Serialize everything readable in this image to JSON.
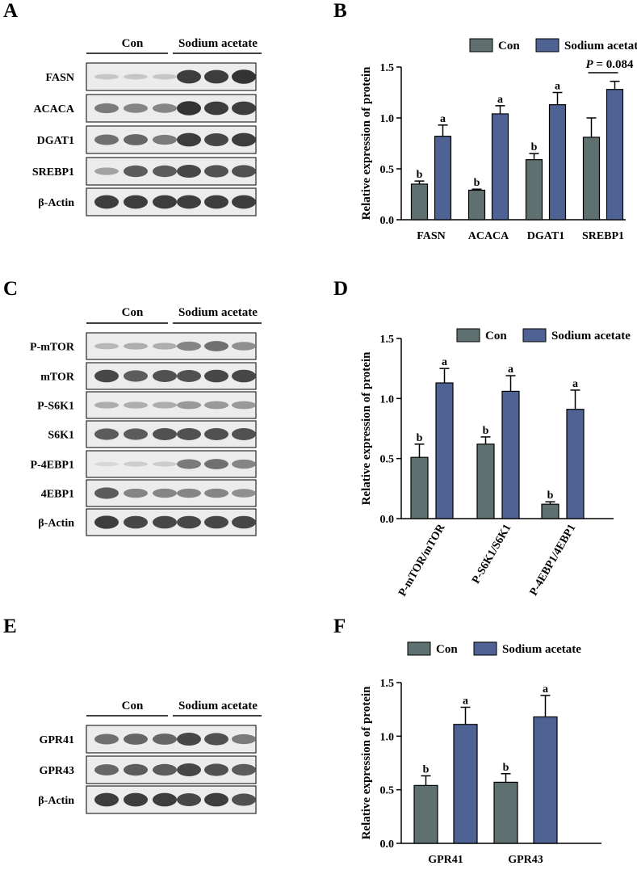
{
  "panels": {
    "A": "A",
    "B": "B",
    "C": "C",
    "D": "D",
    "E": "E",
    "F": "F"
  },
  "groups": {
    "con": "Con",
    "treat": "Sodium acetate"
  },
  "blot_A": {
    "rows": [
      "FASN",
      "ACACA",
      "DGAT1",
      "SREBP1",
      "β-Actin"
    ]
  },
  "blot_C": {
    "rows": [
      "P-mTOR",
      "mTOR",
      "P-S6K1",
      "S6K1",
      "P-4EBP1",
      "4EBP1",
      "β-Actin"
    ]
  },
  "blot_E": {
    "rows": [
      "GPR41",
      "GPR43",
      "β-Actin"
    ]
  },
  "colors": {
    "con": "#5f7070",
    "treat": "#4e6394"
  },
  "chart_data": [
    {
      "panel": "B",
      "type": "bar",
      "categories": [
        "FASN",
        "ACACA",
        "DGAT1",
        "SREBP1"
      ],
      "series": [
        {
          "name": "Con",
          "values": [
            0.35,
            0.29,
            0.59,
            0.81
          ],
          "errors": [
            0.03,
            0.01,
            0.06,
            0.19
          ],
          "letters": [
            "b",
            "b",
            "b",
            ""
          ]
        },
        {
          "name": "Sodium acetate",
          "values": [
            0.82,
            1.04,
            1.13,
            1.28
          ],
          "errors": [
            0.11,
            0.08,
            0.12,
            0.08
          ],
          "letters": [
            "a",
            "a",
            "a",
            ""
          ]
        }
      ],
      "ylabel": "Relative expression of protein",
      "ylim": [
        0,
        1.5
      ],
      "yticks": [
        "0.0",
        "0.5",
        "1.0",
        "1.5"
      ],
      "annotation": {
        "italic": "P",
        "text": " = 0.084",
        "category": "SREBP1"
      },
      "legend": "top-right"
    },
    {
      "panel": "D",
      "type": "bar",
      "categories": [
        "P-mTOR/mTOR",
        "P-S6K1/S6K1",
        "P-4EBP1/4EBP1"
      ],
      "series": [
        {
          "name": "Con",
          "values": [
            0.51,
            0.62,
            0.12
          ],
          "errors": [
            0.11,
            0.06,
            0.02
          ],
          "letters": [
            "b",
            "b",
            "b"
          ]
        },
        {
          "name": "Sodium acetate",
          "values": [
            1.13,
            1.06,
            0.91
          ],
          "errors": [
            0.12,
            0.13,
            0.16
          ],
          "letters": [
            "a",
            "a",
            "a"
          ]
        }
      ],
      "ylabel": "Relative expression of protein",
      "ylim": [
        0,
        1.5
      ],
      "yticks": [
        "0.0",
        "0.5",
        "1.0",
        "1.5"
      ],
      "legend": "top"
    },
    {
      "panel": "F",
      "type": "bar",
      "categories": [
        "GPR41",
        "GPR43"
      ],
      "series": [
        {
          "name": "Con",
          "values": [
            0.54,
            0.57
          ],
          "errors": [
            0.09,
            0.08
          ],
          "letters": [
            "b",
            "b"
          ]
        },
        {
          "name": "Sodium acetate",
          "values": [
            1.11,
            1.18
          ],
          "errors": [
            0.16,
            0.2
          ],
          "letters": [
            "a",
            "a"
          ]
        }
      ],
      "ylabel": "Relative expression of protein",
      "ylim": [
        0,
        1.5
      ],
      "yticks": [
        "0.0",
        "0.5",
        "1.0",
        "1.5"
      ],
      "legend": "top"
    }
  ]
}
